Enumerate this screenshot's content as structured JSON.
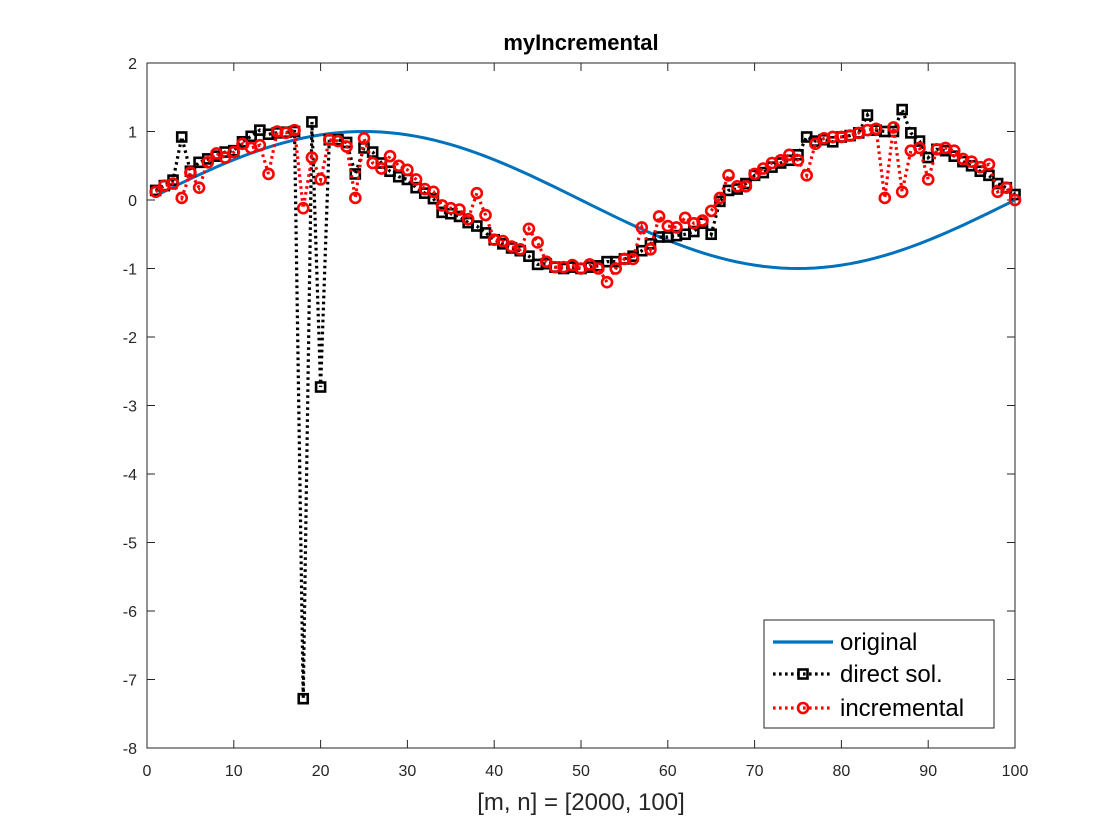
{
  "chart_data": {
    "type": "line",
    "title": "myIncremental",
    "xlabel": "[m, n] = [2000, 100]",
    "ylabel": "",
    "xlim": [
      0,
      100
    ],
    "ylim": [
      -8,
      2
    ],
    "x_ticks": [
      0,
      10,
      20,
      30,
      40,
      50,
      60,
      70,
      80,
      90,
      100
    ],
    "y_ticks": [
      -8,
      -7,
      -6,
      -5,
      -4,
      -3,
      -2,
      -1,
      0,
      1,
      2
    ],
    "grid": false,
    "legend_position": "bottom-right",
    "x": [
      1,
      2,
      3,
      4,
      5,
      6,
      7,
      8,
      9,
      10,
      11,
      12,
      13,
      14,
      15,
      16,
      17,
      18,
      19,
      20,
      21,
      22,
      23,
      24,
      25,
      26,
      27,
      28,
      29,
      30,
      31,
      32,
      33,
      34,
      35,
      36,
      37,
      38,
      39,
      40,
      41,
      42,
      43,
      44,
      45,
      46,
      47,
      48,
      49,
      50,
      51,
      52,
      53,
      54,
      55,
      56,
      57,
      58,
      59,
      60,
      61,
      62,
      63,
      64,
      65,
      66,
      67,
      68,
      69,
      70,
      71,
      72,
      73,
      74,
      75,
      76,
      77,
      78,
      79,
      80,
      81,
      82,
      83,
      84,
      85,
      86,
      87,
      88,
      89,
      90,
      91,
      92,
      93,
      94,
      95,
      96,
      97,
      98,
      99,
      100
    ],
    "series": [
      {
        "name": "original",
        "color": "#0072BD",
        "style": "solid",
        "marker": "none",
        "values": [
          0.0627,
          0.1253,
          0.1874,
          0.2487,
          0.309,
          0.3681,
          0.4258,
          0.4818,
          0.5358,
          0.5878,
          0.6374,
          0.6845,
          0.729,
          0.7705,
          0.809,
          0.8443,
          0.8763,
          0.9048,
          0.9298,
          0.9511,
          0.9686,
          0.9823,
          0.9921,
          0.998,
          1.0,
          0.998,
          0.9921,
          0.9823,
          0.9686,
          0.9511,
          0.9298,
          0.9048,
          0.8763,
          0.8443,
          0.809,
          0.7705,
          0.729,
          0.6845,
          0.6374,
          0.5878,
          0.5358,
          0.4818,
          0.4258,
          0.3681,
          0.309,
          0.2487,
          0.1874,
          0.1253,
          0.0627,
          0.0,
          -0.0627,
          -0.1253,
          -0.1874,
          -0.2487,
          -0.309,
          -0.3681,
          -0.4258,
          -0.4818,
          -0.5358,
          -0.5878,
          -0.6374,
          -0.6845,
          -0.729,
          -0.7705,
          -0.809,
          -0.8443,
          -0.8763,
          -0.9048,
          -0.9298,
          -0.9511,
          -0.9686,
          -0.9823,
          -0.9921,
          -0.998,
          -1.0,
          -0.998,
          -0.9921,
          -0.9823,
          -0.9686,
          -0.9511,
          -0.9298,
          -0.9048,
          -0.8763,
          -0.8443,
          -0.809,
          -0.7705,
          -0.729,
          -0.6845,
          -0.6374,
          -0.5878,
          -0.5358,
          -0.4818,
          -0.4258,
          -0.3681,
          -0.309,
          -0.2487,
          -0.1874,
          -0.1253,
          -0.0627,
          0.0
        ]
      },
      {
        "name": "direct sol.",
        "color": "#000000",
        "style": "dotted",
        "marker": "square",
        "values": [
          0.14,
          0.21,
          0.29,
          0.92,
          0.42,
          0.55,
          0.6,
          0.64,
          0.7,
          0.72,
          0.85,
          0.93,
          1.02,
          0.96,
          0.98,
          0.99,
          1.0,
          -7.28,
          1.14,
          -2.73,
          0.88,
          0.88,
          0.84,
          0.38,
          0.76,
          0.7,
          0.54,
          0.42,
          0.34,
          0.3,
          0.18,
          0.1,
          0.02,
          -0.18,
          -0.2,
          -0.24,
          -0.33,
          -0.38,
          -0.48,
          -0.58,
          -0.64,
          -0.7,
          -0.74,
          -0.82,
          -0.94,
          -0.93,
          -0.98,
          -1.0,
          -0.98,
          -1.0,
          -0.98,
          -0.96,
          -0.9,
          -0.9,
          -0.86,
          -0.82,
          -0.74,
          -0.64,
          -0.54,
          -0.54,
          -0.52,
          -0.5,
          -0.46,
          -0.34,
          -0.5,
          -0.02,
          0.14,
          0.16,
          0.24,
          0.36,
          0.4,
          0.48,
          0.54,
          0.58,
          0.66,
          0.92,
          0.86,
          0.88,
          0.85,
          0.92,
          0.94,
          0.98,
          1.24,
          1.02,
          1.0,
          1.0,
          1.32,
          0.98,
          0.86,
          0.62,
          0.74,
          0.72,
          0.64,
          0.56,
          0.5,
          0.42,
          0.36,
          0.24,
          0.18,
          0.08
        ]
      },
      {
        "name": "incremental",
        "color": "#FF0000",
        "style": "dotted",
        "marker": "circle",
        "values": [
          0.12,
          0.21,
          0.24,
          0.03,
          0.4,
          0.18,
          0.55,
          0.68,
          0.62,
          0.7,
          0.82,
          0.76,
          0.8,
          0.38,
          1.0,
          0.98,
          1.02,
          -0.12,
          0.62,
          0.3,
          0.88,
          0.86,
          0.78,
          0.03,
          0.9,
          0.54,
          0.46,
          0.64,
          0.5,
          0.44,
          0.3,
          0.16,
          0.12,
          -0.08,
          -0.12,
          -0.14,
          -0.28,
          0.1,
          -0.22,
          -0.58,
          -0.6,
          -0.68,
          -0.72,
          -0.42,
          -0.62,
          -0.9,
          -0.98,
          -0.98,
          -0.95,
          -1.0,
          -0.94,
          -1.0,
          -1.2,
          -1.0,
          -0.86,
          -0.86,
          -0.4,
          -0.72,
          -0.24,
          -0.38,
          -0.4,
          -0.26,
          -0.34,
          -0.3,
          -0.16,
          0.03,
          0.36,
          0.2,
          0.2,
          0.38,
          0.46,
          0.54,
          0.58,
          0.66,
          0.58,
          0.36,
          0.82,
          0.9,
          0.92,
          0.92,
          0.94,
          0.98,
          1.02,
          1.04,
          0.03,
          1.06,
          0.12,
          0.72,
          0.76,
          0.3,
          0.74,
          0.76,
          0.72,
          0.6,
          0.56,
          0.48,
          0.52,
          0.12,
          0.18,
          0.0
        ]
      }
    ]
  }
}
